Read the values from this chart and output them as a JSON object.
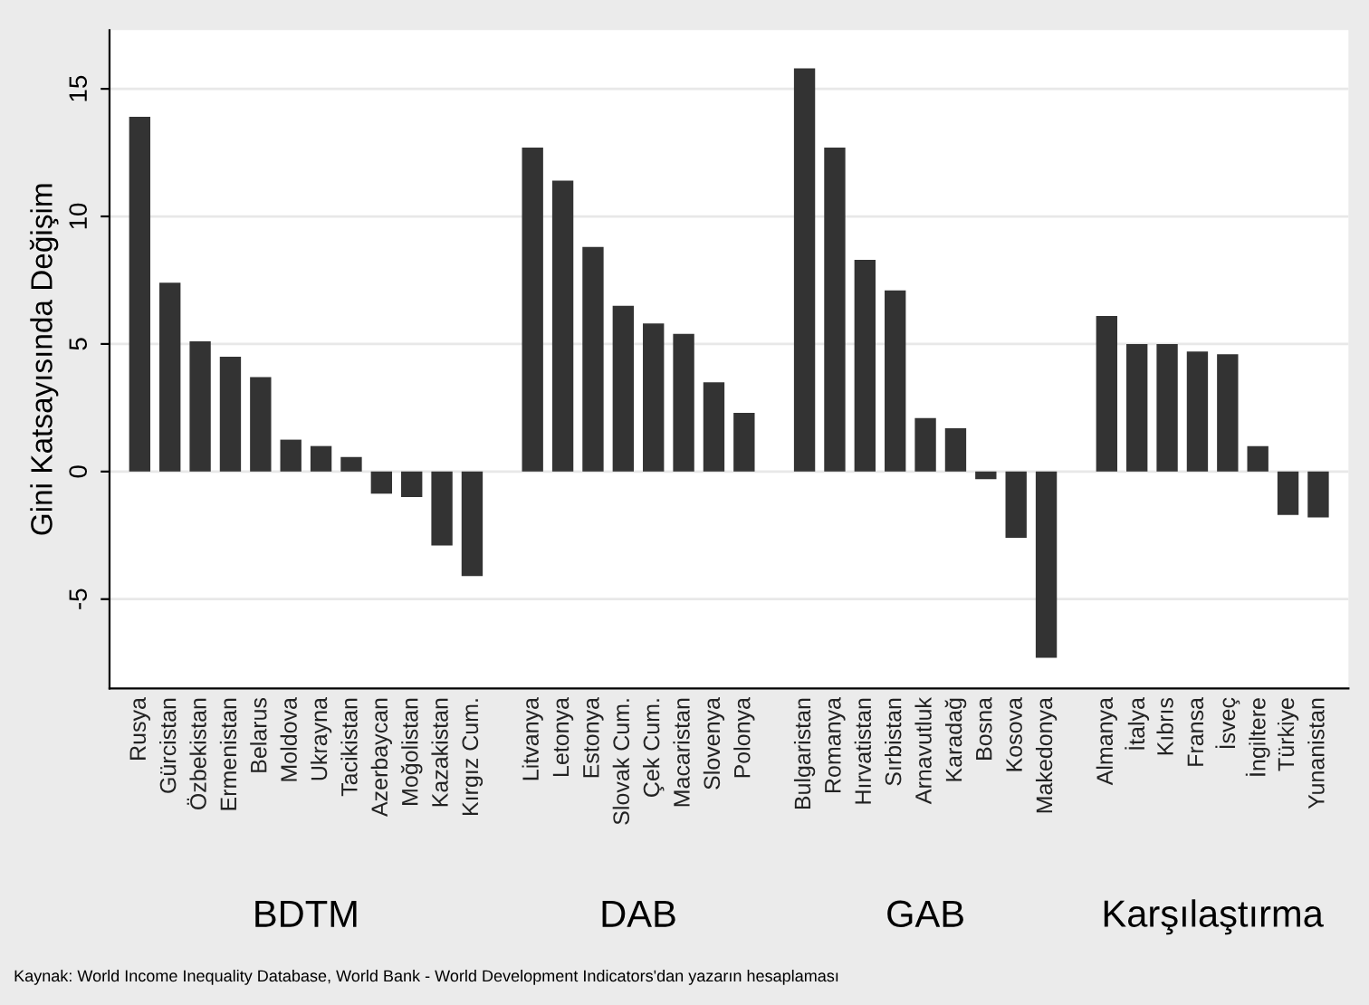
{
  "chart_data": {
    "type": "bar",
    "ylabel": "Gini Katsayısında Değişim",
    "categories": [
      "Rusya",
      "Gürcistan",
      "Özbekistan",
      "Ermenistan",
      "Belarus",
      "Moldova",
      "Ukrayna",
      "Tacikistan",
      "Azerbaycan",
      "Moğolistan",
      "Kazakistan",
      "Kırgız Cum.",
      null,
      "Litvanya",
      "Letonya",
      "Estonya",
      "Slovak Cum.",
      "Çek Cum.",
      "Macaristan",
      "Slovenya",
      "Polonya",
      null,
      "Bulgaristan",
      "Romanya",
      "Hırvatistan",
      "Sırbistan",
      "Arnavutluk",
      "Karadağ",
      "Bosna",
      "Kosova",
      "Makedonya",
      null,
      "Almanya",
      "İtalya",
      "Kıbrıs",
      "Fransa",
      "İsveç",
      "İngiltere",
      "Türkiye",
      "Yunanistan"
    ],
    "values": [
      13.9,
      7.4,
      5.1,
      4.5,
      3.7,
      1.25,
      1.0,
      0.57,
      -0.87,
      -1.0,
      -2.9,
      -4.1,
      null,
      12.7,
      11.4,
      8.8,
      6.5,
      5.8,
      5.4,
      3.5,
      2.3,
      null,
      15.8,
      12.7,
      8.3,
      7.1,
      2.1,
      1.7,
      -0.3,
      -2.6,
      -7.3,
      null,
      6.1,
      5.0,
      5.0,
      4.7,
      4.6,
      1.0,
      -1.7,
      -1.8
    ],
    "color": "#333333",
    "ylim": [
      -8.5,
      17.3
    ],
    "yticks": [
      -5,
      0,
      5,
      10,
      15
    ],
    "grid": "y",
    "annotations": [
      "BDTM",
      "DAB",
      "GAB",
      "Karşılaştırma",
      "Kaynak: World Income Inequality Database, World Bank - World Development Indicators'dan yazarın hesaplaması"
    ]
  }
}
